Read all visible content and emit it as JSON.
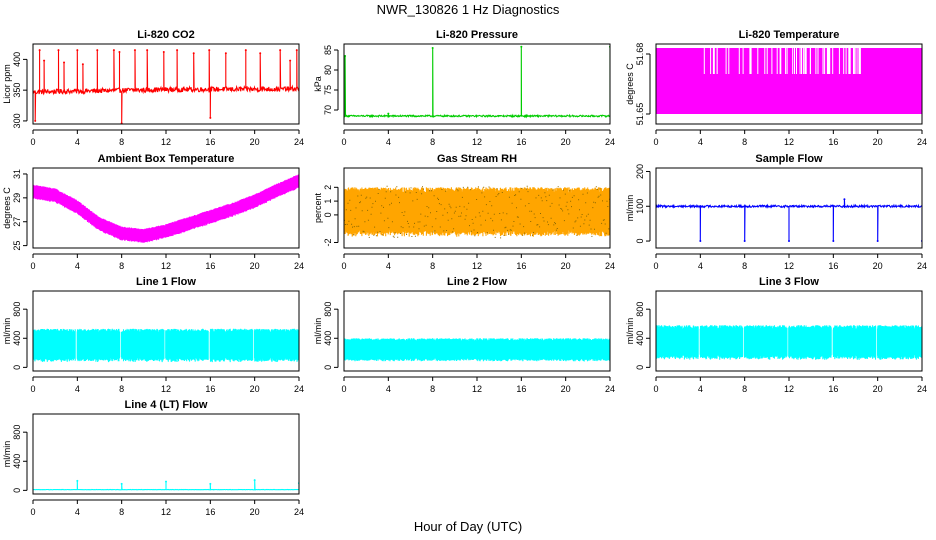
{
  "figure": {
    "title": "NWR_130826  1 Hz Diagnostics",
    "xlabel": "Hour of Day (UTC)"
  },
  "chart_data": [
    {
      "type": "line",
      "title": "Li-820 CO2",
      "ylabel": "Licor ppm",
      "color": "#ff0000",
      "xlim": [
        0,
        24
      ],
      "ylim": [
        295,
        425
      ],
      "yticks": [
        300,
        350,
        400
      ],
      "xticks": [
        0,
        4,
        8,
        12,
        16,
        20,
        24
      ],
      "baseline": 350,
      "noise": 4,
      "trend": [
        [
          0,
          347
        ],
        [
          12,
          351
        ],
        [
          24,
          352
        ]
      ],
      "spikes": [
        [
          0.2,
          300
        ],
        [
          0.6,
          415
        ],
        [
          1.0,
          398
        ],
        [
          2.3,
          415
        ],
        [
          2.8,
          395
        ],
        [
          4.0,
          415
        ],
        [
          4.5,
          392
        ],
        [
          5.8,
          415
        ],
        [
          7.3,
          415
        ],
        [
          7.8,
          412
        ],
        [
          8.0,
          296
        ],
        [
          9.2,
          415
        ],
        [
          10.3,
          415
        ],
        [
          11.8,
          412
        ],
        [
          13.0,
          415
        ],
        [
          14.5,
          410
        ],
        [
          15.9,
          415
        ],
        [
          16.0,
          305
        ],
        [
          17.4,
          410
        ],
        [
          19.2,
          415
        ],
        [
          20.5,
          410
        ],
        [
          22.3,
          415
        ],
        [
          23.2,
          398
        ],
        [
          23.8,
          415
        ]
      ]
    },
    {
      "type": "line",
      "title": "Li-820 Pressure",
      "ylabel": "kPa",
      "color": "#00cc00",
      "xlim": [
        0,
        24
      ],
      "ylim": [
        66.5,
        86.5
      ],
      "yticks": [
        70,
        75,
        80,
        85
      ],
      "xticks": [
        0,
        4,
        8,
        12,
        16,
        20,
        24
      ],
      "baseline": 68.5,
      "noise": 0.2,
      "spikes": [
        [
          0.1,
          83.5
        ],
        [
          4.0,
          69.1
        ],
        [
          8.0,
          85.5
        ],
        [
          16.0,
          85.8
        ],
        [
          24.0,
          85.8
        ]
      ]
    },
    {
      "type": "step",
      "title": "Li-820 Temperature",
      "ylabel": "degrees C",
      "color": "#ff00ff",
      "xlim": [
        0,
        24
      ],
      "ylim": [
        51.645,
        51.685
      ],
      "yticks": [
        51.65,
        51.68
      ],
      "xticks": [
        0,
        4,
        8,
        12,
        16,
        20,
        24
      ],
      "levels": [
        51.65,
        51.67,
        51.683
      ]
    },
    {
      "type": "band",
      "title": "Ambient Box Temperature",
      "ylabel": "degrees C",
      "color": "#ff00ff",
      "xlim": [
        0,
        24
      ],
      "ylim": [
        24.8,
        31.5
      ],
      "yticks": [
        25,
        27,
        29,
        31
      ],
      "xticks": [
        0,
        4,
        8,
        12,
        16,
        20,
        24
      ],
      "center": [
        [
          0,
          29.5
        ],
        [
          2,
          29.2
        ],
        [
          4,
          28.2
        ],
        [
          6,
          26.8
        ],
        [
          8,
          26.0
        ],
        [
          10,
          25.8
        ],
        [
          12,
          26.2
        ],
        [
          14,
          26.8
        ],
        [
          16,
          27.4
        ],
        [
          18,
          28.0
        ],
        [
          20,
          28.7
        ],
        [
          22,
          29.6
        ],
        [
          24,
          30.4
        ]
      ],
      "halfwidth": 0.6
    },
    {
      "type": "band",
      "title": "Gas Stream RH",
      "ylabel": "percent",
      "color": "#ffa500",
      "border": "#886600",
      "xlim": [
        0,
        24
      ],
      "ylim": [
        -2.4,
        3.4
      ],
      "yticks": [
        -2,
        0,
        1,
        2
      ],
      "xticks": [
        0,
        4,
        8,
        12,
        16,
        20,
        24
      ],
      "center": [
        [
          0,
          0.2
        ],
        [
          24,
          0.2
        ]
      ],
      "halfwidth": 1.8
    },
    {
      "type": "line",
      "title": "Sample Flow",
      "ylabel": "ml/min",
      "color": "#0000ff",
      "xlim": [
        0,
        24
      ],
      "ylim": [
        -20,
        210
      ],
      "yticks": [
        0,
        100,
        200
      ],
      "xticks": [
        0,
        4,
        8,
        12,
        16,
        20,
        24
      ],
      "baseline": 100,
      "noise": 3,
      "spikes": [
        [
          4.0,
          0
        ],
        [
          8.0,
          0
        ],
        [
          12.0,
          0
        ],
        [
          16.0,
          0
        ],
        [
          17.0,
          120
        ],
        [
          20.0,
          0
        ],
        [
          24.0,
          0
        ]
      ]
    },
    {
      "type": "band",
      "title": "Line 1 Flow",
      "ylabel": "ml/min",
      "color": "#00ffff",
      "xlim": [
        0,
        24
      ],
      "ylim": [
        -50,
        1050
      ],
      "yticks": [
        0,
        400,
        800
      ],
      "xticks": [
        0,
        4,
        8,
        12,
        16,
        20,
        24
      ],
      "center": [
        [
          0,
          300
        ],
        [
          24,
          300
        ]
      ],
      "halfwidth": 230,
      "gaps": [
        3.9,
        7.9,
        11.9,
        15.9,
        19.9
      ]
    },
    {
      "type": "band",
      "title": "Line 2 Flow",
      "ylabel": "ml/min",
      "color": "#00ffff",
      "xlim": [
        0,
        24
      ],
      "ylim": [
        -50,
        1050
      ],
      "yticks": [
        0,
        400,
        800
      ],
      "xticks": [
        0,
        4,
        8,
        12,
        16,
        20,
        24
      ],
      "center": [
        [
          0,
          240
        ],
        [
          24,
          240
        ]
      ],
      "halfwidth": 160
    },
    {
      "type": "band",
      "title": "Line 3 Flow",
      "ylabel": "ml/min",
      "color": "#00ffff",
      "xlim": [
        0,
        24
      ],
      "ylim": [
        -50,
        1050
      ],
      "yticks": [
        0,
        400,
        800
      ],
      "xticks": [
        0,
        4,
        8,
        12,
        16,
        20,
        24
      ],
      "center": [
        [
          0,
          340
        ],
        [
          24,
          340
        ]
      ],
      "halfwidth": 240,
      "gaps": [
        3.9,
        7.9,
        11.9,
        15.9,
        19.9
      ]
    },
    {
      "type": "line",
      "title": "Line 4 (LT) Flow",
      "ylabel": "ml/min",
      "color": "#00ffff",
      "xlim": [
        0,
        24
      ],
      "ylim": [
        -50,
        1050
      ],
      "yticks": [
        0,
        400,
        800
      ],
      "xticks": [
        0,
        4,
        8,
        12,
        16,
        20,
        24
      ],
      "baseline": 10,
      "noise": 2,
      "spikes": [
        [
          4.0,
          130
        ],
        [
          8.0,
          90
        ],
        [
          12.0,
          120
        ],
        [
          16.0,
          90
        ],
        [
          20.0,
          140
        ],
        [
          24.0,
          100
        ]
      ]
    }
  ]
}
